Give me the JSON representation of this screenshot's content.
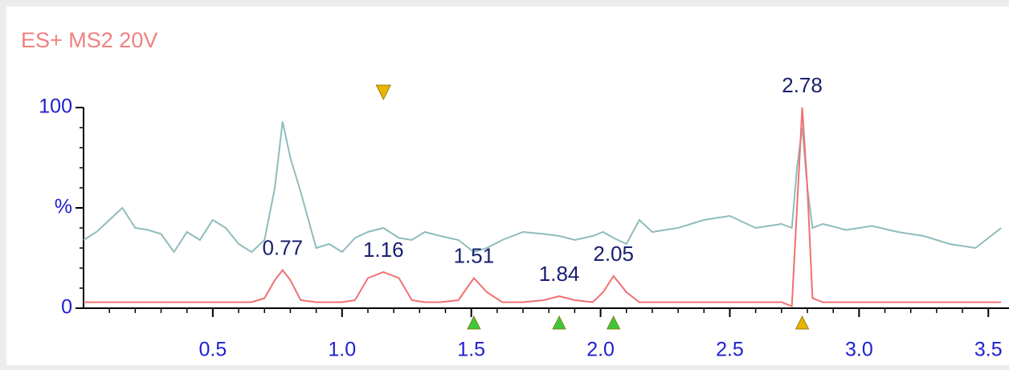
{
  "chart_data": {
    "type": "line",
    "title": "ES+ MS2 20V",
    "x": [
      0,
      0.05,
      0.1,
      0.15,
      0.2,
      0.25,
      0.3,
      0.35,
      0.4,
      0.45,
      0.5,
      0.55,
      0.6,
      0.65,
      0.7,
      0.74,
      0.77,
      0.8,
      0.84,
      0.9,
      0.95,
      1.0,
      1.05,
      1.1,
      1.16,
      1.22,
      1.27,
      1.32,
      1.38,
      1.45,
      1.51,
      1.56,
      1.62,
      1.7,
      1.78,
      1.84,
      1.9,
      1.97,
      2.01,
      2.05,
      2.1,
      2.15,
      2.2,
      2.3,
      2.4,
      2.5,
      2.6,
      2.7,
      2.74,
      2.76,
      2.78,
      2.8,
      2.82,
      2.86,
      2.95,
      3.05,
      3.15,
      3.25,
      3.35,
      3.45,
      3.55
    ],
    "series": [
      {
        "color": "#8fbcbc",
        "values": [
          34,
          38,
          44,
          50,
          40,
          39,
          37,
          28,
          38,
          34,
          44,
          40,
          32,
          28,
          34,
          60,
          93,
          75,
          58,
          30,
          32,
          28,
          35,
          38,
          40,
          35,
          34,
          38,
          36,
          34,
          28,
          30,
          34,
          38,
          37,
          36,
          34,
          36,
          38,
          35,
          32,
          44,
          38,
          40,
          44,
          46,
          40,
          42,
          40,
          70,
          90,
          60,
          40,
          42,
          39,
          41,
          38,
          36,
          32,
          30,
          40
        ]
      },
      {
        "color": "#f07070",
        "values": [
          3,
          3,
          3,
          3,
          3,
          3,
          3,
          3,
          3,
          3,
          3,
          3,
          3,
          3,
          5,
          14,
          19,
          14,
          4,
          3,
          3,
          3,
          4,
          15,
          18,
          15,
          4,
          3,
          3,
          4,
          15,
          8,
          3,
          3,
          4,
          6,
          4,
          3,
          8,
          16,
          8,
          3,
          3,
          3,
          3,
          3,
          3,
          3,
          1,
          50,
          100,
          60,
          5,
          3,
          3,
          3,
          3,
          3,
          3,
          3,
          3
        ]
      }
    ],
    "peak_labels": [
      0.77,
      1.16,
      1.51,
      1.84,
      2.05,
      2.78
    ],
    "markers": [
      {
        "x": 1.16,
        "position": "top",
        "color": "#e8b400"
      },
      {
        "x": 1.51,
        "position": "bottom",
        "color": "#3cc83c"
      },
      {
        "x": 1.84,
        "position": "bottom",
        "color": "#3cc83c"
      },
      {
        "x": 2.05,
        "position": "bottom",
        "color": "#3cc83c"
      },
      {
        "x": 2.78,
        "position": "bottom",
        "color": "#e8b400"
      }
    ],
    "xlim": [
      0,
      3.58
    ],
    "ylim": [
      0,
      100
    ],
    "xticks": [
      0.5,
      1.0,
      1.5,
      2.0,
      2.5,
      3.0,
      3.5
    ],
    "xminorticks": [
      0.1,
      0.2,
      0.3,
      0.4,
      0.6,
      0.7,
      0.8,
      0.9,
      1.1,
      1.2,
      1.3,
      1.4,
      1.6,
      1.7,
      1.8,
      1.9,
      2.1,
      2.2,
      2.3,
      2.4,
      2.6,
      2.7,
      2.8,
      2.9,
      3.1,
      3.2,
      3.3,
      3.4
    ],
    "yticks": [
      0,
      {
        "value": 50,
        "label": "%"
      },
      100
    ],
    "yminorticks": [
      10,
      20,
      30,
      40,
      60,
      70,
      80,
      90
    ]
  }
}
